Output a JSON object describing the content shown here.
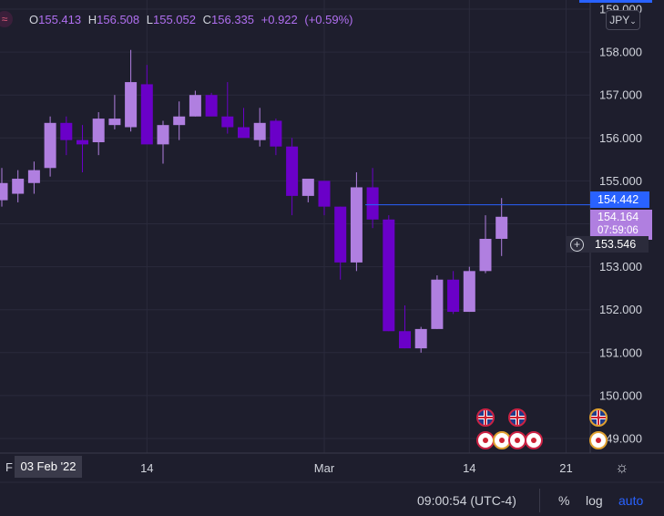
{
  "ohlc": {
    "open_label": "O",
    "open": "155.413",
    "high_label": "H",
    "high": "156.508",
    "low_label": "L",
    "low": "155.052",
    "close_label": "C",
    "close": "156.335",
    "change": "+0.922",
    "change_pct": "(+0.59%)"
  },
  "currency": "JPY",
  "price_tags": {
    "line_price": "154.442",
    "last_price": "154.164",
    "countdown": "07:59:06",
    "crosshair_price": "153.546"
  },
  "x_axis": {
    "cursor_date": "03 Feb '22",
    "left_partial": "F",
    "labels": [
      "14",
      "Mar",
      "14",
      "21"
    ]
  },
  "footer": {
    "time": "09:00:54 (UTC-4)",
    "percent": "%",
    "log": "log",
    "auto": "auto"
  },
  "colors": {
    "up": "#b07fe0",
    "down": "#6a00c8",
    "background": "#1e1e2d",
    "price_line": "#2962ff"
  },
  "events": {
    "uk_flags": [
      {
        "candle": 30
      },
      {
        "candle": 32
      },
      {
        "candle": 37
      }
    ],
    "japan_flags": [
      {
        "candle": 30
      },
      {
        "candle": 31
      },
      {
        "candle": 32
      },
      {
        "candle": 33
      },
      {
        "candle": 37
      }
    ]
  },
  "chart_data": {
    "type": "candlestick",
    "ylim": [
      148.7,
      159.1
    ],
    "y_ticks": [
      149,
      150,
      151,
      152,
      153,
      154,
      155,
      156,
      157,
      158,
      159
    ],
    "y_tick_labels": [
      "149.000",
      "150.000",
      "151.000",
      "152.000",
      "153.000",
      "154.000",
      "155.000",
      "156.000",
      "157.000",
      "158.000",
      "159.000"
    ],
    "price_line": 154.442,
    "candles": [
      {
        "o": 154.55,
        "h": 155.3,
        "l": 154.4,
        "c": 154.95
      },
      {
        "o": 154.7,
        "h": 155.25,
        "l": 154.5,
        "c": 155.05
      },
      {
        "o": 154.95,
        "h": 155.45,
        "l": 154.7,
        "c": 155.25
      },
      {
        "o": 155.3,
        "h": 156.5,
        "l": 155.1,
        "c": 156.35
      },
      {
        "o": 156.35,
        "h": 156.5,
        "l": 155.6,
        "c": 155.95
      },
      {
        "o": 155.95,
        "h": 156.3,
        "l": 155.2,
        "c": 155.85
      },
      {
        "o": 155.9,
        "h": 156.6,
        "l": 155.6,
        "c": 156.45
      },
      {
        "o": 156.3,
        "h": 157.0,
        "l": 156.2,
        "c": 156.45
      },
      {
        "o": 156.25,
        "h": 158.05,
        "l": 156.15,
        "c": 157.3
      },
      {
        "o": 157.25,
        "h": 157.7,
        "l": 155.9,
        "c": 155.85
      },
      {
        "o": 155.85,
        "h": 156.4,
        "l": 155.4,
        "c": 156.3
      },
      {
        "o": 156.3,
        "h": 156.85,
        "l": 155.95,
        "c": 156.5
      },
      {
        "o": 156.5,
        "h": 157.1,
        "l": 156.5,
        "c": 157.0
      },
      {
        "o": 157.0,
        "h": 157.05,
        "l": 156.55,
        "c": 156.5
      },
      {
        "o": 156.5,
        "h": 157.3,
        "l": 156.1,
        "c": 156.25
      },
      {
        "o": 156.25,
        "h": 156.7,
        "l": 156.05,
        "c": 156.0
      },
      {
        "o": 155.95,
        "h": 156.7,
        "l": 155.8,
        "c": 156.35
      },
      {
        "o": 156.4,
        "h": 156.45,
        "l": 155.6,
        "c": 155.8
      },
      {
        "o": 155.8,
        "h": 156.0,
        "l": 154.2,
        "c": 154.65
      },
      {
        "o": 154.65,
        "h": 155.0,
        "l": 154.5,
        "c": 155.05
      },
      {
        "o": 155.0,
        "h": 155.0,
        "l": 154.2,
        "c": 154.4
      },
      {
        "o": 154.4,
        "h": 154.4,
        "l": 152.7,
        "c": 153.1
      },
      {
        "o": 153.1,
        "h": 155.2,
        "l": 152.9,
        "c": 154.85
      },
      {
        "o": 154.85,
        "h": 155.3,
        "l": 153.9,
        "c": 154.1
      },
      {
        "o": 154.1,
        "h": 154.2,
        "l": 151.5,
        "c": 151.5
      },
      {
        "o": 151.5,
        "h": 152.1,
        "l": 151.1,
        "c": 151.1
      },
      {
        "o": 151.1,
        "h": 151.6,
        "l": 151.0,
        "c": 151.55
      },
      {
        "o": 151.55,
        "h": 152.8,
        "l": 151.55,
        "c": 152.7
      },
      {
        "o": 152.7,
        "h": 152.9,
        "l": 151.9,
        "c": 151.95
      },
      {
        "o": 151.95,
        "h": 153.0,
        "l": 151.95,
        "c": 152.9
      },
      {
        "o": 152.9,
        "h": 154.2,
        "l": 152.85,
        "c": 153.65
      },
      {
        "o": 153.65,
        "h": 154.6,
        "l": 153.25,
        "c": 154.164
      }
    ]
  }
}
